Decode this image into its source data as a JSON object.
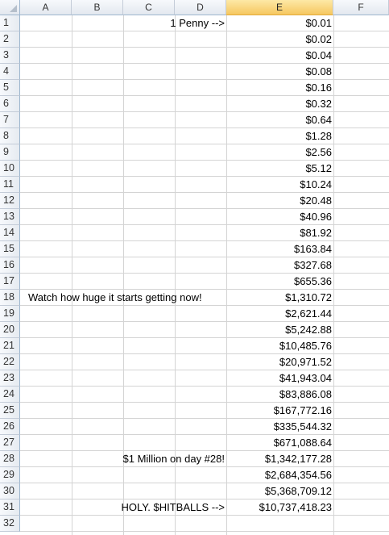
{
  "columns": [
    "A",
    "B",
    "C",
    "D",
    "E",
    "F"
  ],
  "selected_column": "E",
  "rows": [
    "1",
    "2",
    "3",
    "4",
    "5",
    "6",
    "7",
    "8",
    "9",
    "10",
    "11",
    "12",
    "13",
    "14",
    "15",
    "16",
    "17",
    "18",
    "19",
    "20",
    "21",
    "22",
    "23",
    "24",
    "25",
    "26",
    "27",
    "28",
    "29",
    "30",
    "31",
    "32"
  ],
  "values": [
    "$0.01",
    "$0.02",
    "$0.04",
    "$0.08",
    "$0.16",
    "$0.32",
    "$0.64",
    "$1.28",
    "$2.56",
    "$5.12",
    "$10.24",
    "$20.48",
    "$40.96",
    "$81.92",
    "$163.84",
    "$327.68",
    "$655.36",
    "$1,310.72",
    "$2,621.44",
    "$5,242.88",
    "$10,485.76",
    "$20,971.52",
    "$41,943.04",
    "$83,886.08",
    "$167,772.16",
    "$335,544.32",
    "$671,088.64",
    "$1,342,177.28",
    "$2,684,354.56",
    "$5,368,709.12",
    "$10,737,418.23"
  ],
  "labels": {
    "row1": "1 Penny -->",
    "row18": "Watch how huge it starts getting now!",
    "row28": "$1 Million on day #28!",
    "row31": "HOLY. $HITBALLS -->"
  }
}
